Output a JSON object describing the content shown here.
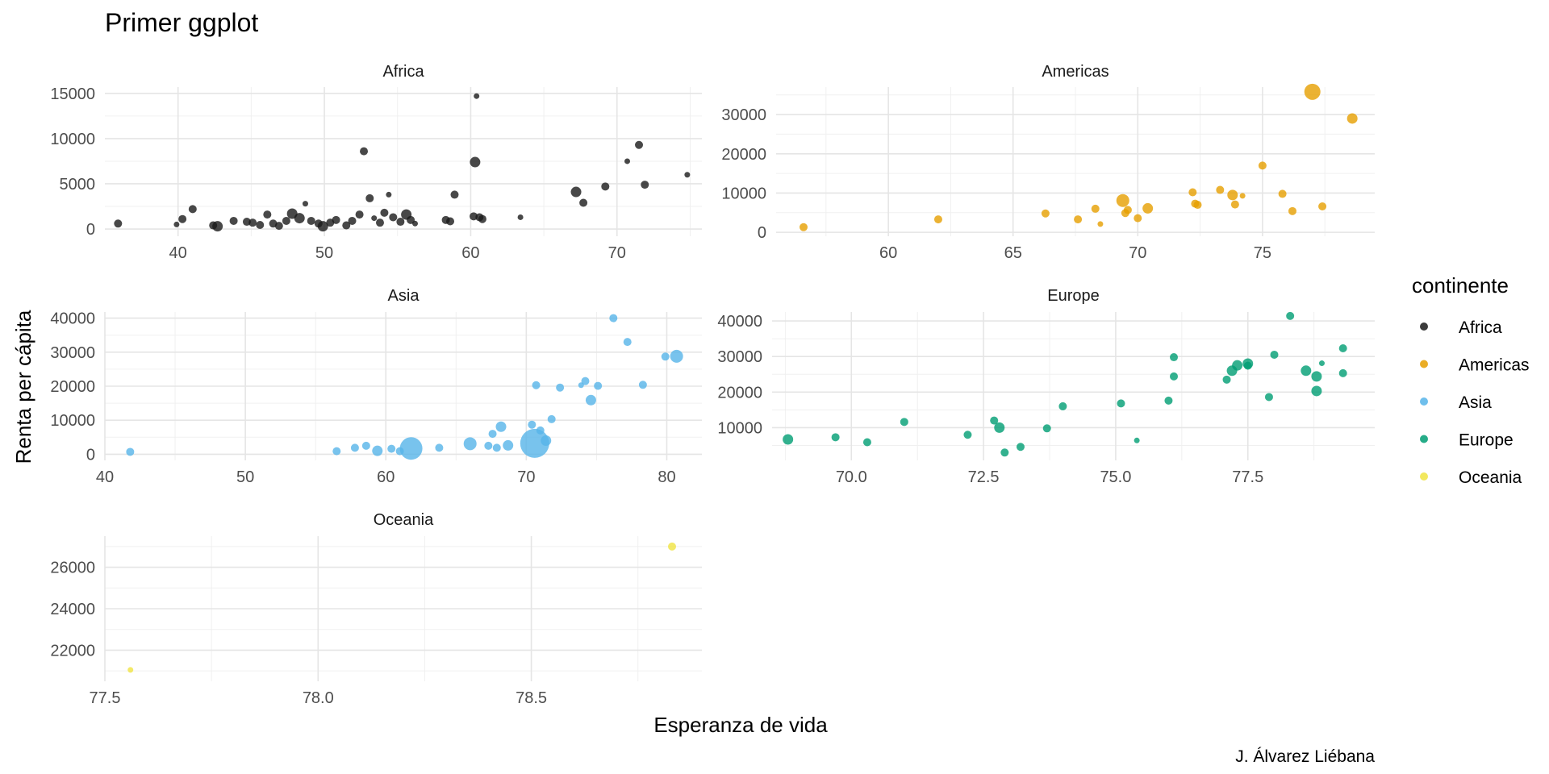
{
  "chart_data": {
    "type": "scatter",
    "title": "Primer ggplot",
    "xlabel": "Esperanza de vida",
    "ylabel": "Renta per cápita",
    "caption": "J. Álvarez Liébana",
    "legend": {
      "title": "continente",
      "placement": "right",
      "entries": [
        {
          "label": "Africa",
          "color": "#1a1a1a"
        },
        {
          "label": "Americas",
          "color": "#E69F00"
        },
        {
          "label": "Asia",
          "color": "#56B4E9"
        },
        {
          "label": "Europe",
          "color": "#009E73"
        },
        {
          "label": "Oceania",
          "color": "#F0E442"
        }
      ]
    },
    "panels": [
      {
        "name": "Africa",
        "color": "#1a1a1a",
        "xlim": [
          35,
          75.8
        ],
        "ylim": [
          -800,
          15700
        ],
        "x_ticks": [
          40,
          50,
          60,
          70
        ],
        "y_ticks": [
          0,
          5000,
          10000,
          15000
        ],
        "points": [
          [
            35.9,
            600,
            2
          ],
          [
            39.9,
            500,
            1
          ],
          [
            40.3,
            1100,
            2
          ],
          [
            41,
            2200,
            2
          ],
          [
            42.4,
            400,
            2
          ],
          [
            42.7,
            300,
            3
          ],
          [
            43.8,
            900,
            2
          ],
          [
            44.7,
            800,
            2
          ],
          [
            45.1,
            700,
            2
          ],
          [
            45.6,
            450,
            2
          ],
          [
            46.1,
            1600,
            2
          ],
          [
            46.5,
            600,
            2
          ],
          [
            46.9,
            350,
            2
          ],
          [
            47.4,
            900,
            2
          ],
          [
            47.8,
            1700,
            3
          ],
          [
            48.3,
            1200,
            3
          ],
          [
            48.7,
            2800,
            1
          ],
          [
            49.1,
            900,
            2
          ],
          [
            49.6,
            600,
            2
          ],
          [
            49.9,
            300,
            3
          ],
          [
            50.4,
            700,
            2
          ],
          [
            50.8,
            1000,
            2
          ],
          [
            51.5,
            400,
            2
          ],
          [
            51.9,
            900,
            2
          ],
          [
            52.4,
            1600,
            2
          ],
          [
            52.7,
            8600,
            2
          ],
          [
            53.1,
            3400,
            2
          ],
          [
            53.4,
            1200,
            1
          ],
          [
            53.8,
            700,
            2
          ],
          [
            54.1,
            1800,
            2
          ],
          [
            54.4,
            3800,
            1
          ],
          [
            54.7,
            1300,
            2
          ],
          [
            55.2,
            800,
            2
          ],
          [
            55.6,
            1600,
            3
          ],
          [
            55.9,
            1000,
            2
          ],
          [
            56.2,
            600,
            1
          ],
          [
            58.3,
            1000,
            2
          ],
          [
            58.6,
            850,
            2
          ],
          [
            58.9,
            3800,
            2
          ],
          [
            60.2,
            1400,
            2
          ],
          [
            60.3,
            7400,
            3
          ],
          [
            60.6,
            1300,
            2
          ],
          [
            60.8,
            1100,
            2
          ],
          [
            60.4,
            14700,
            1
          ],
          [
            63.4,
            1300,
            1
          ],
          [
            67.2,
            4100,
            3
          ],
          [
            67.7,
            2900,
            2
          ],
          [
            69.2,
            4700,
            2
          ],
          [
            70.7,
            7500,
            1
          ],
          [
            71.5,
            9300,
            2
          ],
          [
            71.9,
            4900,
            2
          ],
          [
            74.8,
            6000,
            1
          ]
        ]
      },
      {
        "name": "Americas",
        "color": "#E69F00",
        "xlim": [
          55.5,
          79.5
        ],
        "ylim": [
          -1000,
          37000
        ],
        "x_ticks": [
          60,
          65,
          70,
          75
        ],
        "y_ticks": [
          0,
          10000,
          20000,
          30000
        ],
        "points": [
          [
            56.6,
            1300,
            2
          ],
          [
            62,
            3300,
            2
          ],
          [
            66.3,
            4800,
            2
          ],
          [
            67.6,
            3300,
            2
          ],
          [
            68.3,
            6000,
            2
          ],
          [
            68.5,
            2100,
            1
          ],
          [
            69.4,
            8100,
            4
          ],
          [
            69.5,
            4900,
            2
          ],
          [
            69.6,
            5700,
            2
          ],
          [
            70,
            3600,
            2
          ],
          [
            70.4,
            6100,
            3
          ],
          [
            72.2,
            10200,
            2
          ],
          [
            72.3,
            7300,
            2
          ],
          [
            72.4,
            7000,
            2
          ],
          [
            73.3,
            10800,
            2
          ],
          [
            73.8,
            9500,
            3
          ],
          [
            73.9,
            7100,
            2
          ],
          [
            74.2,
            9300,
            1
          ],
          [
            75,
            17000,
            2
          ],
          [
            75.8,
            9800,
            2
          ],
          [
            76.2,
            5400,
            2
          ],
          [
            77,
            35800,
            5
          ],
          [
            77.4,
            6600,
            2
          ],
          [
            78.6,
            29000,
            3
          ]
        ]
      },
      {
        "name": "Asia",
        "color": "#56B4E9",
        "xlim": [
          40,
          82.5
        ],
        "ylim": [
          -1800,
          41800
        ],
        "x_ticks": [
          40,
          50,
          60,
          70,
          80
        ],
        "y_ticks": [
          0,
          10000,
          20000,
          30000,
          40000
        ],
        "points": [
          [
            41.8,
            700,
            2
          ],
          [
            56.5,
            900,
            2
          ],
          [
            57.8,
            1900,
            2
          ],
          [
            58.6,
            2500,
            2
          ],
          [
            59.4,
            1000,
            3
          ],
          [
            60.4,
            1600,
            2
          ],
          [
            61,
            900,
            2
          ],
          [
            61.8,
            1700,
            7
          ],
          [
            63.8,
            1900,
            2
          ],
          [
            66,
            3100,
            4
          ],
          [
            67.3,
            2500,
            2
          ],
          [
            67.6,
            6000,
            2
          ],
          [
            67.9,
            1900,
            2
          ],
          [
            68.2,
            8100,
            3
          ],
          [
            68.7,
            2600,
            3
          ],
          [
            70.6,
            3200,
            8
          ],
          [
            70.4,
            8700,
            2
          ],
          [
            70.7,
            20300,
            2
          ],
          [
            71,
            7000,
            2
          ],
          [
            71.4,
            4000,
            3
          ],
          [
            71.8,
            10300,
            2
          ],
          [
            72.4,
            19600,
            2
          ],
          [
            73.9,
            20300,
            1
          ],
          [
            74.2,
            21500,
            2
          ],
          [
            74.6,
            15900,
            3
          ],
          [
            75.1,
            20100,
            2
          ],
          [
            76.2,
            40000,
            2
          ],
          [
            77.2,
            33000,
            2
          ],
          [
            78.3,
            20400,
            2
          ],
          [
            79.9,
            28700,
            2
          ],
          [
            80.7,
            28800,
            4
          ]
        ]
      },
      {
        "name": "Europe",
        "color": "#009E73",
        "xlim": [
          68.5,
          79.9
        ],
        "ylim": [
          800,
          42500
        ],
        "x_ticks": [
          70.0,
          72.5,
          75.0,
          77.5
        ],
        "y_ticks": [
          10000,
          20000,
          30000,
          40000
        ],
        "points": [
          [
            68.8,
            6700,
            3
          ],
          [
            69.7,
            7300,
            2
          ],
          [
            70.3,
            5900,
            2
          ],
          [
            71,
            11600,
            2
          ],
          [
            72.2,
            8000,
            2
          ],
          [
            72.7,
            12000,
            2
          ],
          [
            72.8,
            10000,
            3
          ],
          [
            72.9,
            3000,
            2
          ],
          [
            73.2,
            4600,
            2
          ],
          [
            73.7,
            9800,
            2
          ],
          [
            74,
            16000,
            2
          ],
          [
            75.1,
            16800,
            2
          ],
          [
            75.4,
            6400,
            1
          ],
          [
            76,
            17600,
            2
          ],
          [
            76.1,
            29800,
            2
          ],
          [
            76.1,
            24400,
            2
          ],
          [
            77.1,
            23500,
            2
          ],
          [
            77.2,
            26000,
            3
          ],
          [
            77.3,
            27500,
            3
          ],
          [
            77.5,
            28000,
            3
          ],
          [
            77.5,
            27400,
            2
          ],
          [
            77.9,
            18600,
            2
          ],
          [
            78,
            30500,
            2
          ],
          [
            78.3,
            41400,
            2
          ],
          [
            78.6,
            26000,
            3
          ],
          [
            78.8,
            24400,
            3
          ],
          [
            78.8,
            20300,
            3
          ],
          [
            78.9,
            28100,
            1
          ],
          [
            79.3,
            32300,
            2
          ],
          [
            79.3,
            25300,
            2
          ]
        ]
      },
      {
        "name": "Oceania",
        "color": "#F0E442",
        "xlim": [
          77.5,
          78.9
        ],
        "ylim": [
          20500,
          27500
        ],
        "x_ticks": [
          77.5,
          78.0,
          78.5
        ],
        "tick_labels": [
          "77.5",
          "78.0",
          "78.5"
        ],
        "y_ticks": [
          22000,
          24000,
          26000
        ],
        "points": [
          [
            77.56,
            21050,
            1
          ],
          [
            78.83,
            27000,
            2
          ]
        ]
      }
    ]
  }
}
